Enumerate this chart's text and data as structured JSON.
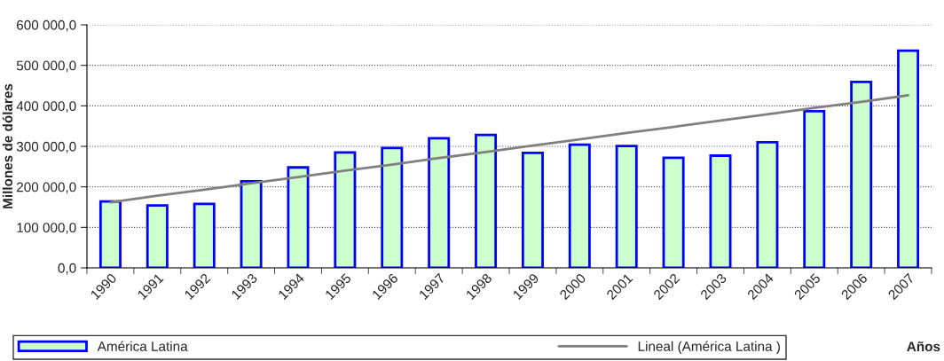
{
  "chart_data": {
    "type": "bar",
    "xlabel": "Años",
    "ylabel": "Millones de dólares",
    "categories": [
      "1990",
      "1991",
      "1992",
      "1993",
      "1994",
      "1995",
      "1996",
      "1997",
      "1998",
      "1999",
      "2000",
      "2001",
      "2002",
      "2003",
      "2004",
      "2005",
      "2006",
      "2007"
    ],
    "series": [
      {
        "name": "América Latina",
        "color": "#ccffcc",
        "values": [
          164000,
          154000,
          158000,
          214000,
          248000,
          285000,
          296000,
          320000,
          328000,
          284000,
          304000,
          301000,
          272000,
          277000,
          310000,
          387000,
          459000,
          536000
        ]
      },
      {
        "name": "Lineal (América Latina )",
        "type": "line",
        "color": "#808080",
        "values": [
          162000,
          178000,
          193000,
          209000,
          224000,
          240000,
          255000,
          271000,
          286000,
          302000,
          317000,
          333000,
          348000,
          364000,
          379000,
          395000,
          410000,
          426000
        ]
      }
    ],
    "ylim": [
      0,
      600000
    ],
    "yticks": [
      {
        "value": 0,
        "label": "0,0"
      },
      {
        "value": 100000,
        "label": "100 000,0"
      },
      {
        "value": 200000,
        "label": "200 000,0"
      },
      {
        "value": 300000,
        "label": "300 000,0"
      },
      {
        "value": 400000,
        "label": "400 000,0"
      },
      {
        "value": 500000,
        "label": "500 000,0"
      },
      {
        "value": 600000,
        "label": "600 000,0"
      }
    ],
    "grid": "y",
    "legend": "bottom"
  }
}
